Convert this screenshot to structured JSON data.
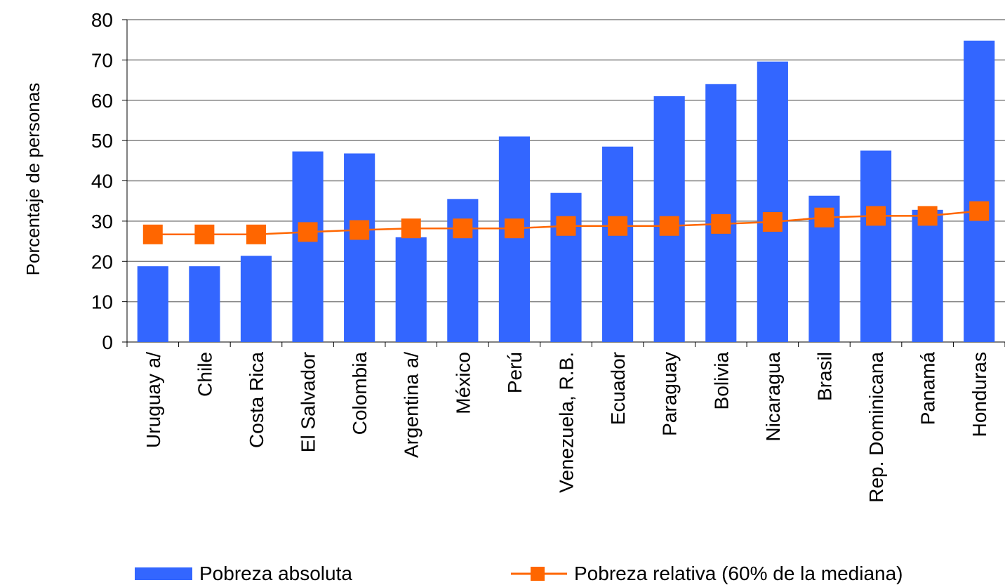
{
  "chart_data": {
    "type": "bar",
    "ylabel": "Porcentaje de personas",
    "xlabel": "",
    "ylim": [
      0,
      80
    ],
    "yticks": [
      0,
      10,
      20,
      30,
      40,
      50,
      60,
      70,
      80
    ],
    "grid": true,
    "legend_placement": "bottom",
    "categories": [
      "Uruguay a/",
      "Chile",
      "Costa Rica",
      "El Salvador",
      "Colombia",
      "Argentina a/",
      "México",
      "Perú",
      "Venezuela, R.B.",
      "Ecuador",
      "Paraguay",
      "Bolivia",
      "Nicaragua",
      "Brasil",
      "Rep. Dominicana",
      "Panamá",
      "Honduras"
    ],
    "series": [
      {
        "name": "Pobreza absoluta",
        "type": "bar",
        "color": "#3366FF",
        "values": [
          18.8,
          18.8,
          21.4,
          47.3,
          46.8,
          26.0,
          35.5,
          51.0,
          37.0,
          48.5,
          61.0,
          64.0,
          69.6,
          36.3,
          47.5,
          32.8,
          74.8
        ]
      },
      {
        "name": "Pobreza relativa (60% de la mediana)",
        "type": "line",
        "marker": "square",
        "color": "#FF6600",
        "values": [
          26.7,
          26.7,
          26.7,
          27.3,
          27.8,
          28.2,
          28.2,
          28.2,
          28.8,
          28.8,
          28.8,
          29.3,
          29.8,
          30.9,
          31.3,
          31.3,
          32.5
        ]
      }
    ]
  }
}
